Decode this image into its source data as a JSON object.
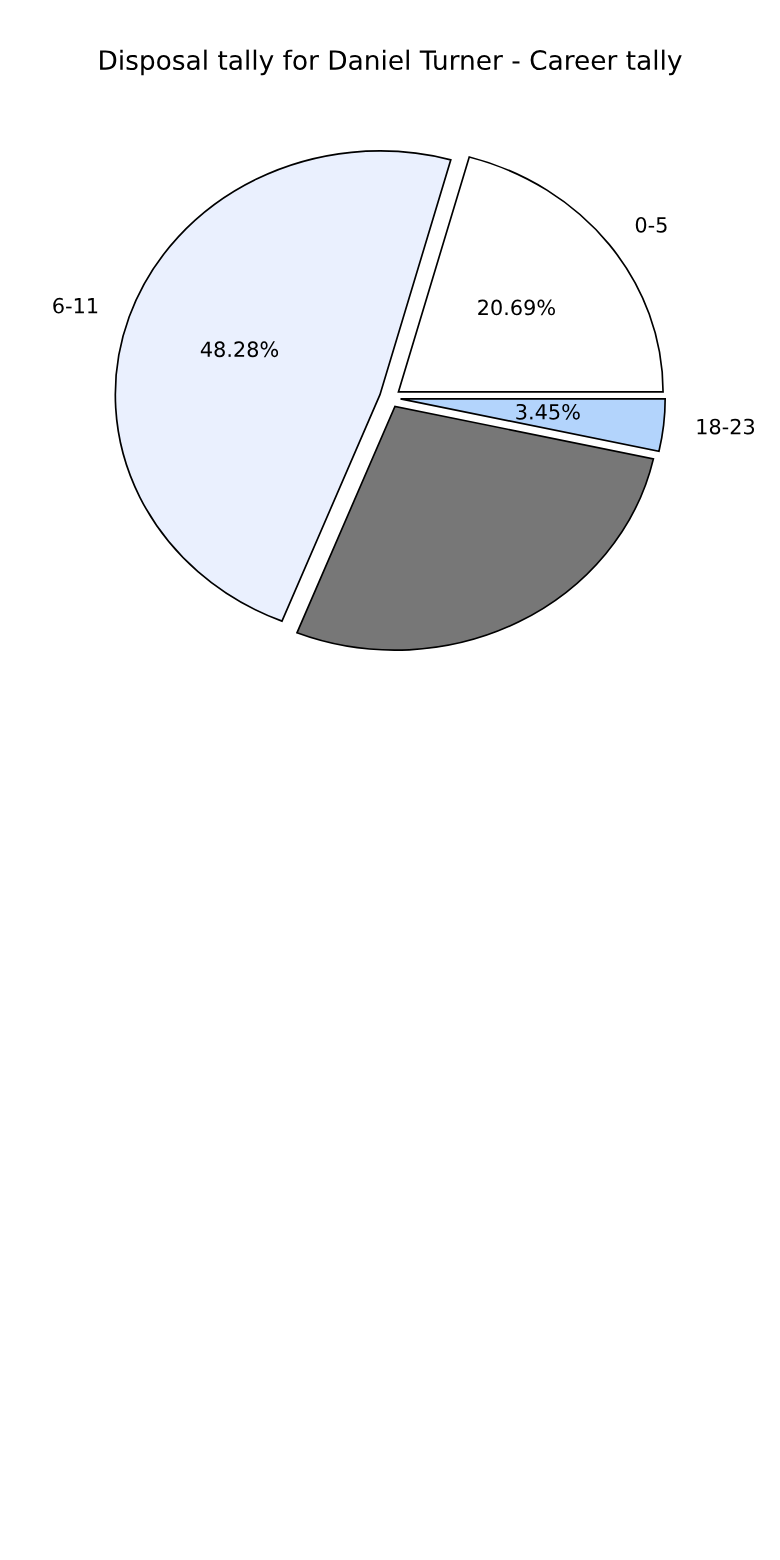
{
  "chart_data": {
    "type": "pie",
    "title": "Disposal tally for Daniel Turner - Career tally",
    "categories": [
      "0-5",
      "6-11",
      null,
      "18-23"
    ],
    "values": [
      20.69,
      48.28,
      27.59,
      3.45
    ],
    "colors": [
      "#ffffff",
      "#eaf0fe",
      "#777777",
      "#b3d4fc"
    ],
    "value_labels": [
      "20.69%",
      "48.28%",
      null,
      "3.45%"
    ]
  }
}
